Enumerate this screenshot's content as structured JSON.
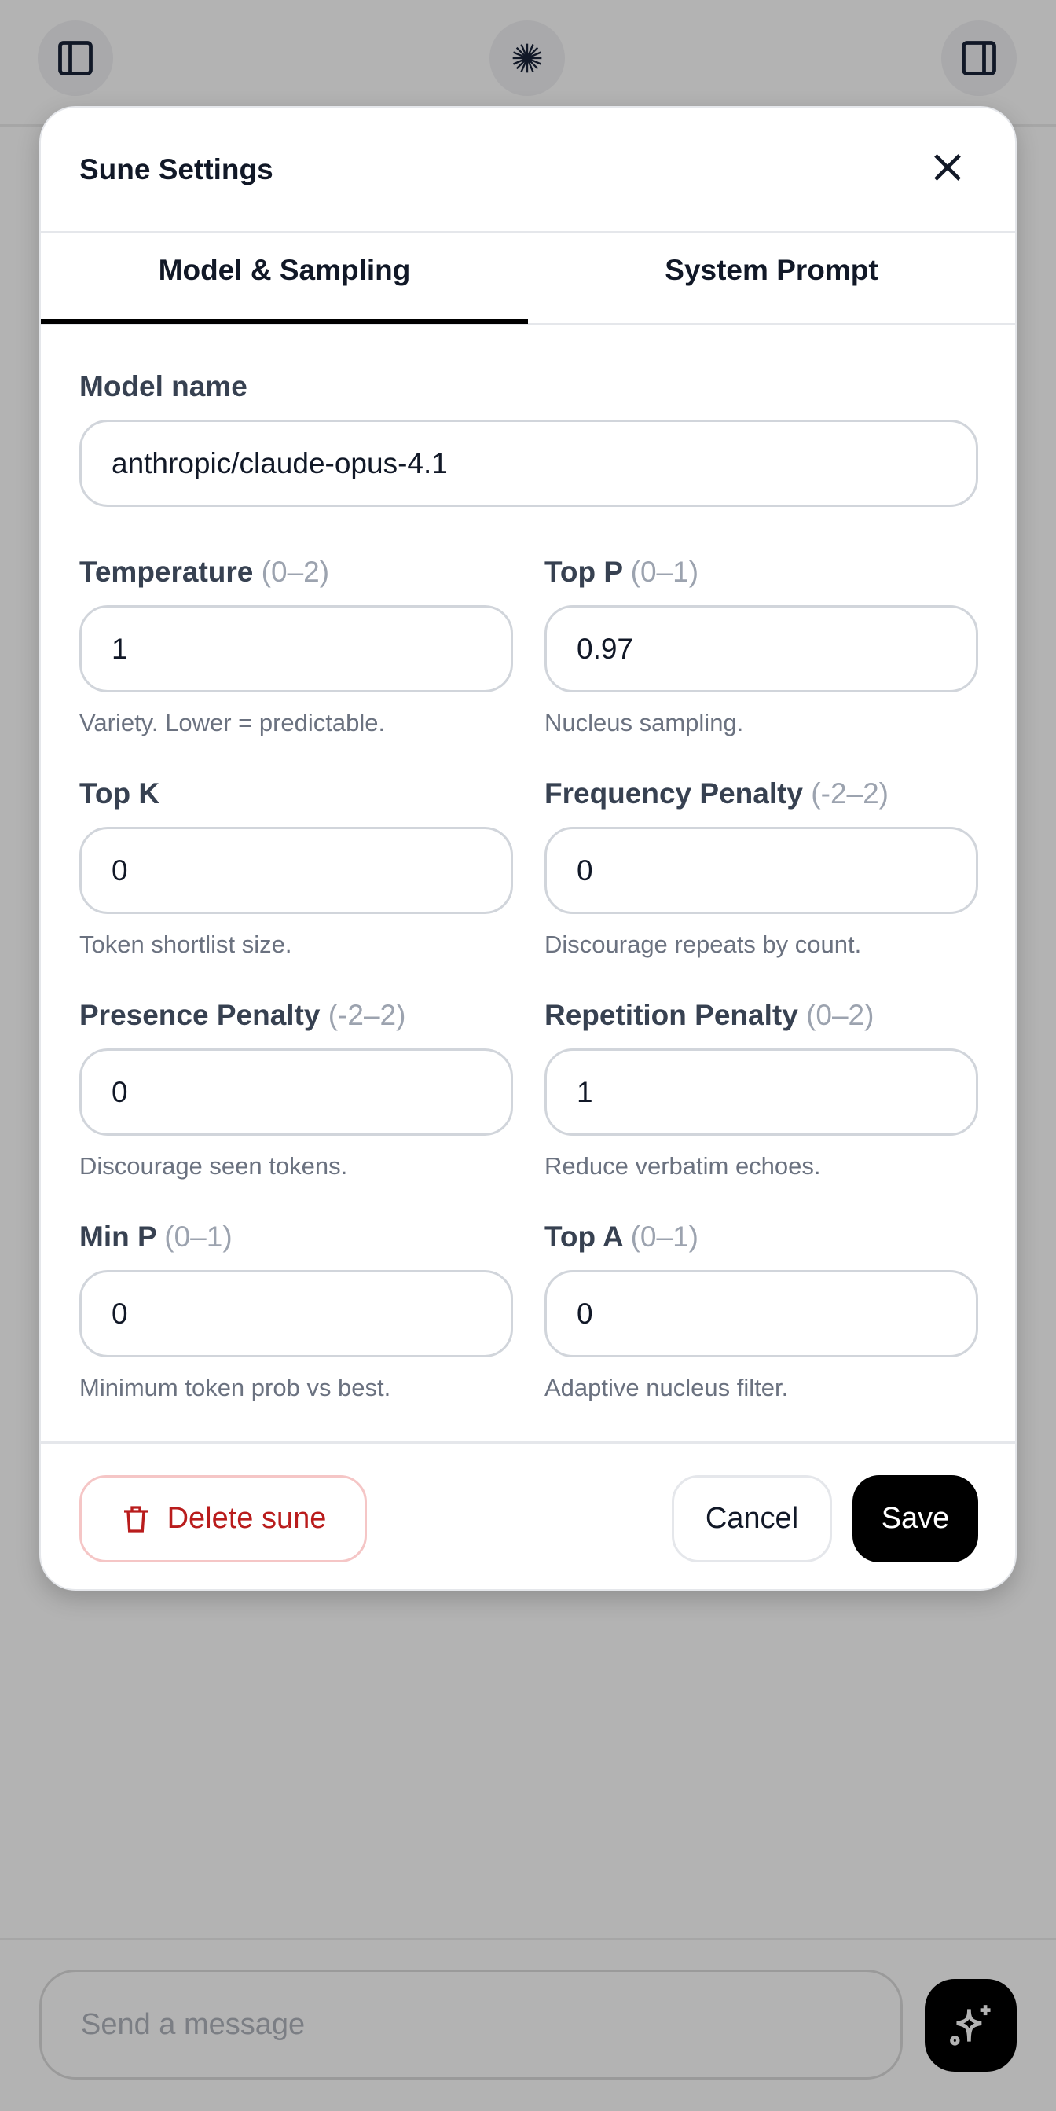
{
  "topbar": {
    "left_icon": "sidebar-left-icon",
    "center_icon": "sunburst-logo-icon",
    "right_icon": "sidebar-right-icon"
  },
  "modal": {
    "title": "Sune Settings",
    "tabs": [
      {
        "label": "Model & Sampling",
        "active": true
      },
      {
        "label": "System Prompt",
        "active": false
      }
    ],
    "model_name": {
      "label": "Model name",
      "value": "anthropic/claude-opus-4.1"
    },
    "fields": [
      {
        "label": "Temperature",
        "range": "(0–2)",
        "value": "1",
        "help": "Variety. Lower = predictable."
      },
      {
        "label": "Top P",
        "range": "(0–1)",
        "value": "0.97",
        "help": "Nucleus sampling."
      },
      {
        "label": "Top K",
        "range": "",
        "value": "0",
        "help": "Token shortlist size."
      },
      {
        "label": "Frequency Penalty",
        "range": "(-2–2)",
        "value": "0",
        "help": "Discourage repeats by count."
      },
      {
        "label": "Presence Penalty",
        "range": "(-2–2)",
        "value": "0",
        "help": "Discourage seen tokens."
      },
      {
        "label": "Repetition Penalty",
        "range": "(0–2)",
        "value": "1",
        "help": "Reduce verbatim echoes."
      },
      {
        "label": "Min P",
        "range": "(0–1)",
        "value": "0",
        "help": "Minimum token prob vs best."
      },
      {
        "label": "Top A",
        "range": "(0–1)",
        "value": "0",
        "help": "Adaptive nucleus filter."
      }
    ],
    "delete_label": "Delete sune",
    "cancel_label": "Cancel",
    "save_label": "Save"
  },
  "composer": {
    "placeholder": "Send a message",
    "send_icon": "sparkles-icon"
  },
  "colors": {
    "danger": "#b91c1c",
    "primary": "#000000",
    "overlay": "#b3b3b3"
  }
}
